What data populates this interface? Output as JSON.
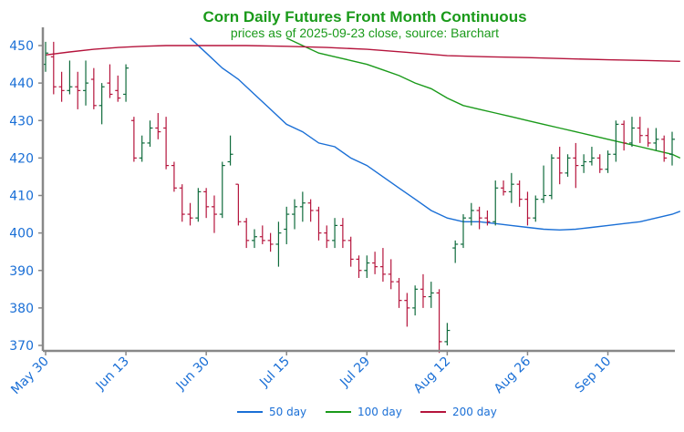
{
  "chart_data": {
    "type": "ohlc",
    "title": "Corn Daily Futures Front Month Continuous",
    "subtitle": "prices as of 2025-09-23 close, source: Barchart",
    "xlabel": "",
    "ylabel": "",
    "ylim": [
      368,
      452
    ],
    "yticks": [
      370,
      380,
      390,
      400,
      410,
      420,
      430,
      440,
      450
    ],
    "xtick_labels": [
      "May 30",
      "Jun 13",
      "Jun 30",
      "Jul 15",
      "Jul 29",
      "Aug 12",
      "Aug 26",
      "Sep 10"
    ],
    "xtick_indices": [
      0,
      10,
      20,
      30,
      40,
      50,
      60,
      70
    ],
    "grid": false,
    "legend_position": "bottom",
    "colors": {
      "title": "#1a9a1a",
      "axis_text": "#1a6fd6",
      "up": "#0f6b3c",
      "down": "#b5143c",
      "axis": "#888888"
    },
    "bars": [
      {
        "date": "May 30",
        "o": 445,
        "h": 451,
        "l": 443,
        "c": 448
      },
      {
        "date": "Jun 2",
        "o": 447,
        "h": 451,
        "l": 437,
        "c": 439
      },
      {
        "date": "Jun 3",
        "o": 439,
        "h": 443,
        "l": 435,
        "c": 438
      },
      {
        "date": "Jun 4",
        "o": 438,
        "h": 446,
        "l": 437,
        "c": 439
      },
      {
        "date": "Jun 5",
        "o": 439,
        "h": 443,
        "l": 433,
        "c": 438
      },
      {
        "date": "Jun 6",
        "o": 438,
        "h": 446,
        "l": 434,
        "c": 440
      },
      {
        "date": "Jun 9",
        "o": 441,
        "h": 444,
        "l": 433,
        "c": 434
      },
      {
        "date": "Jun 10",
        "o": 434,
        "h": 440,
        "l": 429,
        "c": 439
      },
      {
        "date": "Jun 11",
        "o": 440,
        "h": 445,
        "l": 436,
        "c": 437
      },
      {
        "date": "Jun 12",
        "o": 438,
        "h": 442,
        "l": 435,
        "c": 436
      },
      {
        "date": "Jun 13",
        "o": 437,
        "h": 445,
        "l": 435,
        "c": 444
      },
      {
        "date": "Jun 16",
        "o": 430,
        "h": 431,
        "l": 419,
        "c": 420
      },
      {
        "date": "Jun 17",
        "o": 420,
        "h": 426,
        "l": 419,
        "c": 424
      },
      {
        "date": "Jun 18",
        "o": 424,
        "h": 430,
        "l": 423,
        "c": 428
      },
      {
        "date": "Jun 20",
        "o": 428,
        "h": 432,
        "l": 425,
        "c": 427
      },
      {
        "date": "Jun 23",
        "o": 428,
        "h": 431,
        "l": 417,
        "c": 418
      },
      {
        "date": "Jun 24",
        "o": 418,
        "h": 419,
        "l": 411,
        "c": 412
      },
      {
        "date": "Jun 25",
        "o": 412,
        "h": 413,
        "l": 403,
        "c": 405
      },
      {
        "date": "Jun 26",
        "o": 405,
        "h": 408,
        "l": 402,
        "c": 404
      },
      {
        "date": "Jun 27",
        "o": 404,
        "h": 412,
        "l": 403,
        "c": 411
      },
      {
        "date": "Jun 30",
        "o": 411,
        "h": 412,
        "l": 404,
        "c": 407
      },
      {
        "date": "Jul 1",
        "o": 407,
        "h": 410,
        "l": 400,
        "c": 405
      },
      {
        "date": "Jul 2",
        "o": 405,
        "h": 419,
        "l": 404,
        "c": 418
      },
      {
        "date": "Jul 3",
        "o": 419,
        "h": 426,
        "l": 418,
        "c": 421
      },
      {
        "date": "Jul 7",
        "o": 413,
        "h": 413,
        "l": 402,
        "c": 403
      },
      {
        "date": "Jul 8",
        "o": 403,
        "h": 404,
        "l": 396,
        "c": 398
      },
      {
        "date": "Jul 9",
        "o": 398,
        "h": 401,
        "l": 396,
        "c": 399
      },
      {
        "date": "Jul 10",
        "o": 399,
        "h": 402,
        "l": 397,
        "c": 398
      },
      {
        "date": "Jul 11",
        "o": 398,
        "h": 400,
        "l": 395,
        "c": 397
      },
      {
        "date": "Jul 14",
        "o": 397,
        "h": 403,
        "l": 391,
        "c": 400
      },
      {
        "date": "Jul 15",
        "o": 401,
        "h": 407,
        "l": 397,
        "c": 405
      },
      {
        "date": "Jul 16",
        "o": 405,
        "h": 409,
        "l": 401,
        "c": 407
      },
      {
        "date": "Jul 17",
        "o": 407,
        "h": 411,
        "l": 403,
        "c": 408
      },
      {
        "date": "Jul 18",
        "o": 408,
        "h": 409,
        "l": 403,
        "c": 406
      },
      {
        "date": "Jul 21",
        "o": 406,
        "h": 407,
        "l": 398,
        "c": 400
      },
      {
        "date": "Jul 22",
        "o": 400,
        "h": 402,
        "l": 396,
        "c": 398
      },
      {
        "date": "Jul 23",
        "o": 398,
        "h": 404,
        "l": 396,
        "c": 402
      },
      {
        "date": "Jul 24",
        "o": 402,
        "h": 404,
        "l": 396,
        "c": 398
      },
      {
        "date": "Jul 25",
        "o": 398,
        "h": 399,
        "l": 391,
        "c": 393
      },
      {
        "date": "Jul 28",
        "o": 393,
        "h": 394,
        "l": 388,
        "c": 390
      },
      {
        "date": "Jul 29",
        "o": 390,
        "h": 394,
        "l": 388,
        "c": 392
      },
      {
        "date": "Jul 30",
        "o": 392,
        "h": 395,
        "l": 389,
        "c": 391
      },
      {
        "date": "Jul 31",
        "o": 391,
        "h": 396,
        "l": 387,
        "c": 389
      },
      {
        "date": "Aug 1",
        "o": 389,
        "h": 393,
        "l": 385,
        "c": 387
      },
      {
        "date": "Aug 4",
        "o": 387,
        "h": 388,
        "l": 380,
        "c": 382
      },
      {
        "date": "Aug 5",
        "o": 382,
        "h": 384,
        "l": 375,
        "c": 380
      },
      {
        "date": "Aug 6",
        "o": 380,
        "h": 386,
        "l": 378,
        "c": 385
      },
      {
        "date": "Aug 7",
        "o": 385,
        "h": 389,
        "l": 380,
        "c": 383
      },
      {
        "date": "Aug 8",
        "o": 383,
        "h": 387,
        "l": 380,
        "c": 384
      },
      {
        "date": "Aug 11",
        "o": 384,
        "h": 385,
        "l": 368,
        "c": 371
      },
      {
        "date": "Aug 12",
        "o": 371,
        "h": 376,
        "l": 370,
        "c": 374
      },
      {
        "date": "Aug 13",
        "o": 396,
        "h": 398,
        "l": 392,
        "c": 397
      },
      {
        "date": "Aug 14",
        "o": 397,
        "h": 405,
        "l": 396,
        "c": 404
      },
      {
        "date": "Aug 15",
        "o": 404,
        "h": 408,
        "l": 402,
        "c": 406
      },
      {
        "date": "Aug 18",
        "o": 406,
        "h": 407,
        "l": 401,
        "c": 404
      },
      {
        "date": "Aug 19",
        "o": 404,
        "h": 406,
        "l": 402,
        "c": 403
      },
      {
        "date": "Aug 20",
        "o": 403,
        "h": 414,
        "l": 402,
        "c": 412
      },
      {
        "date": "Aug 21",
        "o": 412,
        "h": 414,
        "l": 410,
        "c": 411
      },
      {
        "date": "Aug 22",
        "o": 411,
        "h": 416,
        "l": 408,
        "c": 413
      },
      {
        "date": "Aug 25",
        "o": 413,
        "h": 414,
        "l": 407,
        "c": 409
      },
      {
        "date": "Aug 26",
        "o": 409,
        "h": 411,
        "l": 402,
        "c": 404
      },
      {
        "date": "Aug 27",
        "o": 404,
        "h": 410,
        "l": 403,
        "c": 409
      },
      {
        "date": "Aug 28",
        "o": 409,
        "h": 418,
        "l": 408,
        "c": 410
      },
      {
        "date": "Aug 29",
        "o": 410,
        "h": 421,
        "l": 409,
        "c": 420
      },
      {
        "date": "Sep 2",
        "o": 420,
        "h": 423,
        "l": 413,
        "c": 416
      },
      {
        "date": "Sep 3",
        "o": 416,
        "h": 421,
        "l": 415,
        "c": 420
      },
      {
        "date": "Sep 4",
        "o": 420,
        "h": 424,
        "l": 412,
        "c": 418
      },
      {
        "date": "Sep 5",
        "o": 418,
        "h": 421,
        "l": 416,
        "c": 419
      },
      {
        "date": "Sep 8",
        "o": 419,
        "h": 423,
        "l": 418,
        "c": 420
      },
      {
        "date": "Sep 9",
        "o": 420,
        "h": 421,
        "l": 416,
        "c": 417
      },
      {
        "date": "Sep 10",
        "o": 417,
        "h": 422,
        "l": 416,
        "c": 421
      },
      {
        "date": "Sep 11",
        "o": 421,
        "h": 430,
        "l": 419,
        "c": 429
      },
      {
        "date": "Sep 12",
        "o": 429,
        "h": 430,
        "l": 422,
        "c": 424
      },
      {
        "date": "Sep 15",
        "o": 424,
        "h": 431,
        "l": 423,
        "c": 428
      },
      {
        "date": "Sep 16",
        "o": 428,
        "h": 431,
        "l": 424,
        "c": 426
      },
      {
        "date": "Sep 17",
        "o": 426,
        "h": 428,
        "l": 423,
        "c": 424
      },
      {
        "date": "Sep 18",
        "o": 424,
        "h": 428,
        "l": 422,
        "c": 425
      },
      {
        "date": "Sep 19",
        "o": 425,
        "h": 426,
        "l": 419,
        "c": 420
      },
      {
        "date": "Sep 22",
        "o": 421,
        "h": 427,
        "l": 418,
        "c": 425
      }
    ],
    "series": [
      {
        "name": "50 day",
        "color": "#1a6fd6",
        "points": [
          [
            18,
            452
          ],
          [
            20,
            448
          ],
          [
            22,
            444
          ],
          [
            24,
            441
          ],
          [
            26,
            437
          ],
          [
            28,
            433
          ],
          [
            30,
            429
          ],
          [
            32,
            427
          ],
          [
            34,
            424
          ],
          [
            36,
            423
          ],
          [
            38,
            420
          ],
          [
            40,
            418
          ],
          [
            42,
            415
          ],
          [
            44,
            412
          ],
          [
            46,
            409
          ],
          [
            48,
            406
          ],
          [
            50,
            404
          ],
          [
            52,
            403
          ],
          [
            54,
            403
          ],
          [
            56,
            402.5
          ],
          [
            58,
            402
          ],
          [
            60,
            401.5
          ],
          [
            62,
            401
          ],
          [
            64,
            400.8
          ],
          [
            66,
            401
          ],
          [
            68,
            401.5
          ],
          [
            70,
            402
          ],
          [
            72,
            402.5
          ],
          [
            74,
            403
          ],
          [
            76,
            404
          ],
          [
            78,
            405
          ],
          [
            79,
            405.8
          ]
        ]
      },
      {
        "name": "100 day",
        "color": "#1a9a1a",
        "points": [
          [
            30,
            452
          ],
          [
            32,
            450
          ],
          [
            34,
            448
          ],
          [
            36,
            447
          ],
          [
            38,
            446
          ],
          [
            40,
            445
          ],
          [
            42,
            443.5
          ],
          [
            44,
            442
          ],
          [
            46,
            440
          ],
          [
            48,
            438.5
          ],
          [
            50,
            436
          ],
          [
            52,
            434
          ],
          [
            54,
            433
          ],
          [
            56,
            432
          ],
          [
            58,
            431
          ],
          [
            60,
            430
          ],
          [
            62,
            429
          ],
          [
            64,
            428
          ],
          [
            66,
            427
          ],
          [
            68,
            426
          ],
          [
            70,
            425
          ],
          [
            72,
            424
          ],
          [
            74,
            423
          ],
          [
            76,
            422
          ],
          [
            78,
            421
          ],
          [
            79,
            420
          ]
        ]
      },
      {
        "name": "200 day",
        "color": "#b5143c",
        "points": [
          [
            0,
            447.5
          ],
          [
            3,
            448.3
          ],
          [
            6,
            449
          ],
          [
            9,
            449.5
          ],
          [
            12,
            449.8
          ],
          [
            15,
            450
          ],
          [
            20,
            450
          ],
          [
            25,
            450
          ],
          [
            30,
            449.8
          ],
          [
            35,
            449.5
          ],
          [
            40,
            449
          ],
          [
            45,
            448.2
          ],
          [
            50,
            447.3
          ],
          [
            55,
            447
          ],
          [
            60,
            446.8
          ],
          [
            65,
            446.5
          ],
          [
            70,
            446.2
          ],
          [
            75,
            446
          ],
          [
            79,
            445.8
          ]
        ]
      }
    ]
  }
}
